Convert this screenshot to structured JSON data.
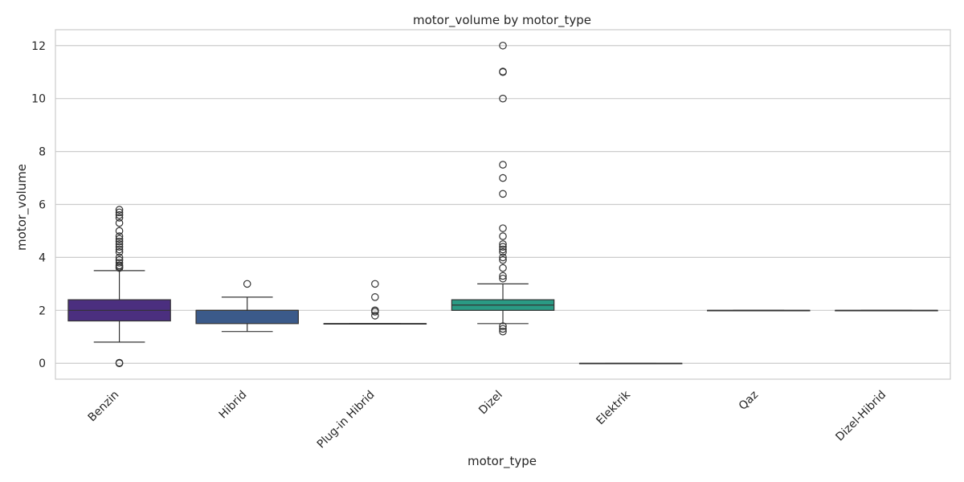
{
  "chart_data": {
    "type": "box",
    "title": "motor_volume by motor_type",
    "xlabel": "motor_type",
    "ylabel": "motor_volume",
    "ylim": [
      -0.6,
      12.6
    ],
    "yticks": [
      0,
      2,
      4,
      6,
      8,
      10,
      12
    ],
    "grid": true,
    "categories": [
      "Benzin",
      "Hibrid",
      "Plug-in Hibrid",
      "Dizel",
      "Elektrik",
      "Qaz",
      "Dizel-Hibrid"
    ],
    "boxes": [
      {
        "category": "Benzin",
        "color": "#4b2f7f",
        "whisker_low": 0.8,
        "q1": 1.6,
        "median": 2.0,
        "q3": 2.4,
        "whisker_high": 3.5,
        "outliers": [
          0.0,
          0.02,
          3.6,
          3.65,
          3.7,
          3.8,
          3.9,
          4.0,
          4.2,
          4.3,
          4.4,
          4.5,
          4.6,
          4.7,
          4.8,
          5.0,
          5.3,
          5.5,
          5.6,
          5.7,
          5.8
        ]
      },
      {
        "category": "Hibrid",
        "color": "#3b5a8a",
        "whisker_low": 1.2,
        "q1": 1.5,
        "median": 2.0,
        "q3": 2.0,
        "whisker_high": 2.5,
        "outliers": [
          3.0
        ]
      },
      {
        "category": "Plug-in Hibrid",
        "color": "#2f6e8e",
        "whisker_low": 1.5,
        "q1": 1.5,
        "median": 1.5,
        "q3": 1.5,
        "whisker_high": 1.5,
        "outliers": [
          1.8,
          1.95,
          2.0,
          2.5,
          3.0
        ]
      },
      {
        "category": "Dizel",
        "color": "#2a9a84",
        "whisker_low": 1.5,
        "q1": 2.0,
        "median": 2.2,
        "q3": 2.4,
        "whisker_high": 3.0,
        "outliers": [
          1.2,
          1.3,
          1.4,
          3.2,
          3.3,
          3.6,
          3.9,
          4.0,
          4.2,
          4.3,
          4.4,
          4.5,
          4.8,
          5.1,
          6.4,
          7.0,
          7.5,
          10.0,
          11.0,
          11.02,
          12.0
        ]
      },
      {
        "category": "Elektrik",
        "color": "#3fae6e",
        "whisker_low": 0.0,
        "q1": 0.0,
        "median": 0.0,
        "q3": 0.0,
        "whisker_high": 0.0,
        "outliers": []
      },
      {
        "category": "Qaz",
        "color": "#7ac54f",
        "whisker_low": 2.0,
        "q1": 2.0,
        "median": 2.0,
        "q3": 2.0,
        "whisker_high": 2.0,
        "outliers": []
      },
      {
        "category": "Dizel-Hibrid",
        "color": "#b5d43a",
        "whisker_low": 2.0,
        "q1": 2.0,
        "median": 2.0,
        "q3": 2.0,
        "whisker_high": 2.0,
        "outliers": []
      }
    ]
  }
}
